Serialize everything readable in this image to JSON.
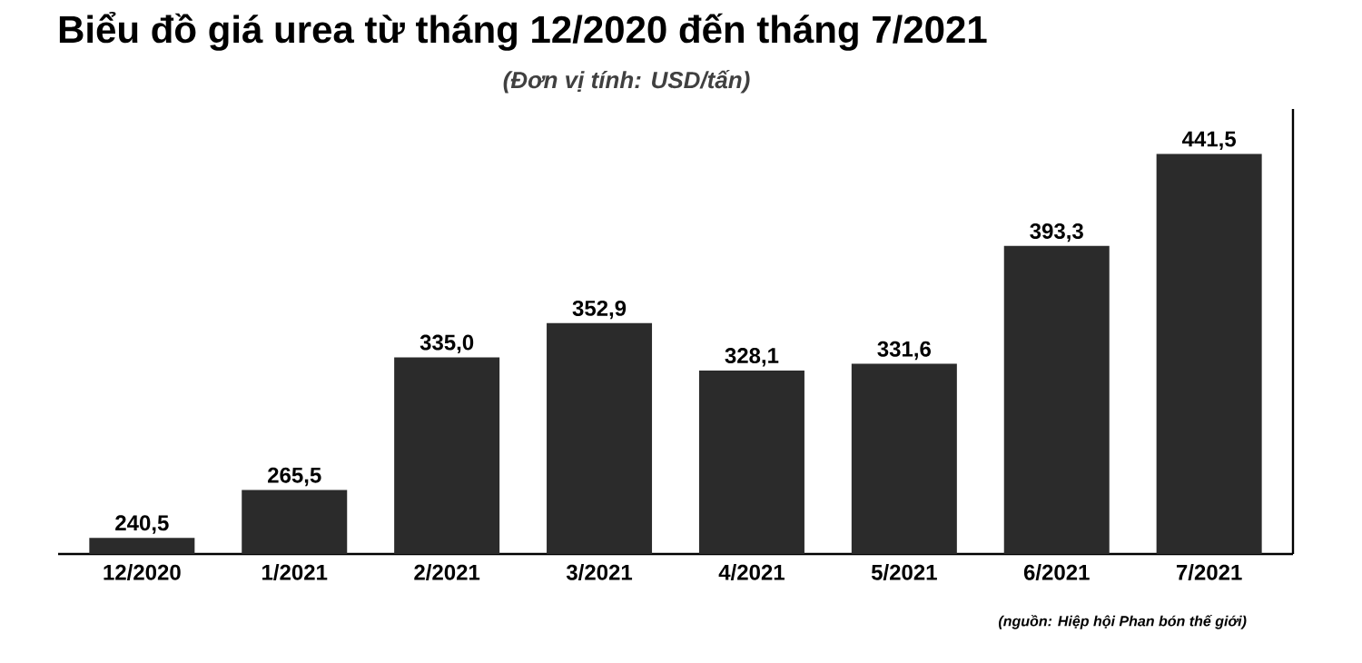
{
  "chart_data": {
    "type": "bar",
    "title": "Biểu đồ giá urea từ tháng 12/2020 đến tháng 7/2021",
    "subtitle": "(Đơn vị tính: USD/tấn)",
    "categories": [
      "12/2020",
      "1/2021",
      "2/2021",
      "3/2021",
      "4/2021",
      "5/2021",
      "6/2021",
      "7/2021"
    ],
    "values": [
      240.5,
      265.5,
      335.0,
      352.9,
      328.1,
      331.6,
      393.3,
      441.5
    ],
    "value_labels": [
      "240,5",
      "265,5",
      "335,0",
      "352,9",
      "328,1",
      "331,6",
      "393,3",
      "441,5"
    ],
    "color": "#2b2b2b",
    "ylim": [
      232,
      465
    ],
    "tick_labels": "x",
    "annotations": [
      "(nguồn: Hiệp hội Phan bón thế giới)"
    ]
  }
}
